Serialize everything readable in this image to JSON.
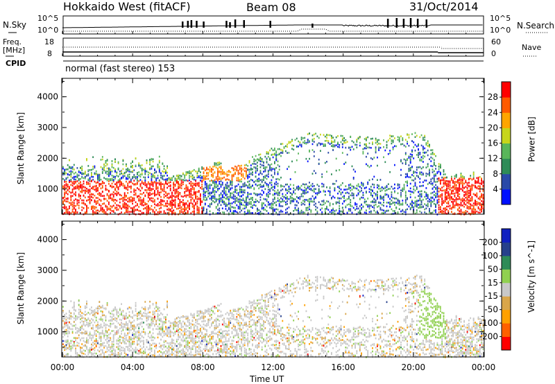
{
  "header": {
    "station": "Hokkaido West (fitACF)",
    "beam": "Beam 08",
    "date": "31/Oct/2014"
  },
  "status_panels": {
    "nsky_label": "N.Sky",
    "nsearch_label": "N.Search",
    "noise_ticks": [
      "10^5",
      "10^0"
    ],
    "freq_label": "Freq.",
    "freq_unit": "[MHz]",
    "freq_ticks": [
      "18",
      "8"
    ],
    "nave_label": "Nave",
    "nave_ticks": [
      "60",
      "0"
    ],
    "cpid_label": "CPID",
    "cpid_text": "normal (fast stereo) 153"
  },
  "colors": {
    "power_scale": [
      "#0010ff",
      "#2a49a8",
      "#2e8b57",
      "#59b65a",
      "#c7d51b",
      "#ffa500",
      "#ff5a00",
      "#ff0000"
    ],
    "velocity_scale": [
      "#ff0000",
      "#ff6000",
      "#ffa000",
      "#d9a64a",
      "#c8c8c8",
      "#90d050",
      "#2e8b57",
      "#26408b",
      "#1020c0"
    ]
  },
  "chart_data": [
    {
      "type": "heatmap",
      "panel": "power",
      "ylabel": "Slant Range [km]",
      "y_ticks": [
        "4000",
        "3000",
        "2000",
        "1000"
      ],
      "ylim": [
        180,
        4600
      ],
      "xlim_hours": [
        0,
        24
      ],
      "colorbar_label": "Power [dB]",
      "colorbar_ticks": [
        "28",
        "24",
        "20",
        "16",
        "12",
        "8",
        "4"
      ],
      "colorbar_range": [
        0,
        32
      ]
    },
    {
      "type": "heatmap",
      "panel": "velocity",
      "ylabel": "Slant Range [km]",
      "y_ticks": [
        "4000",
        "3000",
        "2000",
        "1000"
      ],
      "ylim": [
        180,
        4600
      ],
      "xlim_hours": [
        0,
        24
      ],
      "xlabel": "Time UT",
      "x_ticks": [
        "00:00",
        "04:00",
        "08:00",
        "12:00",
        "16:00",
        "20:00",
        "00:00"
      ],
      "colorbar_label": "Velocity [m s^-1]",
      "colorbar_ticks": [
        "200",
        "100",
        "50",
        "15",
        "-15",
        "-50",
        "-100",
        "-200"
      ]
    }
  ]
}
